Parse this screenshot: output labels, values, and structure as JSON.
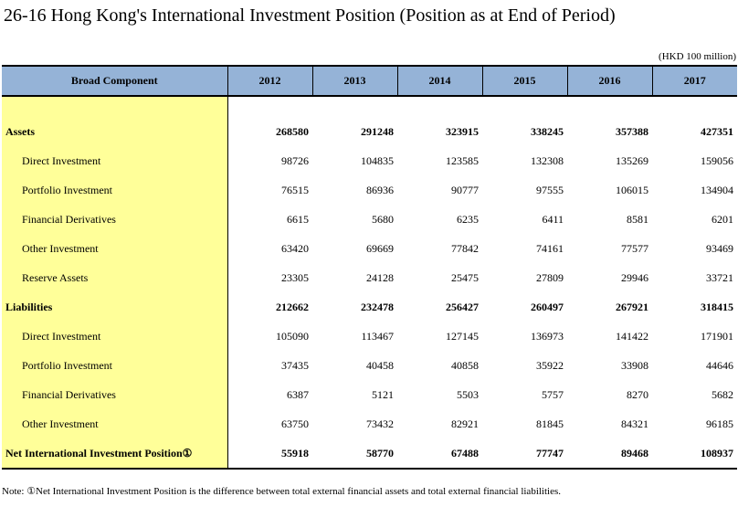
{
  "title": "26-16  Hong Kong's International Investment Position (Position as at End of Period)",
  "unit": "(HKD 100 million)",
  "table": {
    "header": [
      "Broad Component",
      "2012",
      "2013",
      "2014",
      "2015",
      "2016",
      "2017"
    ],
    "rows": [
      {
        "label": "Assets",
        "values": [
          "268580",
          "291248",
          "323915",
          "338245",
          "357388",
          "427351"
        ]
      },
      {
        "label": "Direct Investment",
        "values": [
          "98726",
          "104835",
          "123585",
          "132308",
          "135269",
          "159056"
        ]
      },
      {
        "label": "Portfolio Investment",
        "values": [
          "76515",
          "86936",
          "90777",
          "97555",
          "106015",
          "134904"
        ]
      },
      {
        "label": "Financial Derivatives",
        "values": [
          "6615",
          "5680",
          "6235",
          "6411",
          "8581",
          "6201"
        ]
      },
      {
        "label": "Other Investment",
        "values": [
          "63420",
          "69669",
          "77842",
          "74161",
          "77577",
          "93469"
        ]
      },
      {
        "label": "Reserve Assets",
        "values": [
          "23305",
          "24128",
          "25475",
          "27809",
          "29946",
          "33721"
        ]
      },
      {
        "label": "Liabilities",
        "values": [
          "212662",
          "232478",
          "256427",
          "260497",
          "267921",
          "318415"
        ]
      },
      {
        "label": "Direct Investment",
        "values": [
          "105090",
          "113467",
          "127145",
          "136973",
          "141422",
          "171901"
        ]
      },
      {
        "label": "Portfolio Investment",
        "values": [
          "37435",
          "40458",
          "40858",
          "35922",
          "33908",
          "44646"
        ]
      },
      {
        "label": "Financial Derivatives",
        "values": [
          "6387",
          "5121",
          "5503",
          "5757",
          "8270",
          "5682"
        ]
      },
      {
        "label": "Other Investment",
        "values": [
          "63750",
          "73432",
          "82921",
          "81845",
          "84321",
          "96185"
        ]
      },
      {
        "label": "Net International Investment Position①",
        "values": [
          "55918",
          "58770",
          "67488",
          "77747",
          "89468",
          "108937"
        ]
      }
    ]
  },
  "note": "Note: ①Net International Investment Position is the difference between total external financial assets and total external financial liabilities.",
  "colors": {
    "header_bg": "#95b3d7",
    "label_bg": "#ffff99"
  }
}
